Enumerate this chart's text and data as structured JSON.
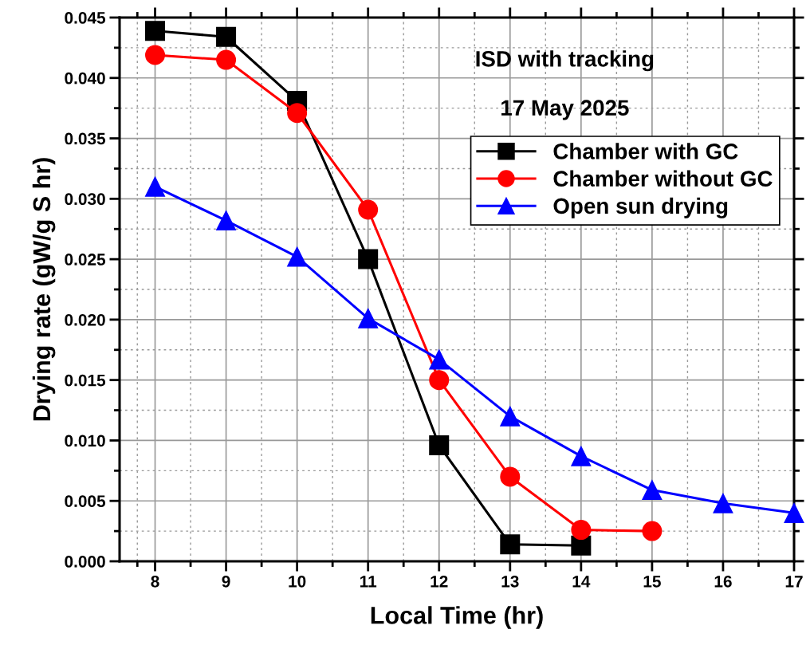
{
  "chart_data": {
    "type": "line",
    "xlabel": "Local Time (hr)",
    "ylabel": "Drying rate (gW/g S hr)",
    "annotations": [
      "ISD with tracking",
      "17 May 2025"
    ],
    "xlim": [
      7.5,
      17
    ],
    "xticks": [
      8,
      9,
      10,
      11,
      12,
      13,
      14,
      15,
      16,
      17
    ],
    "ylim": [
      0,
      0.045
    ],
    "yticks": [
      {
        "value": 0,
        "label": "0.000"
      },
      {
        "value": 0.005,
        "label": "0.005"
      },
      {
        "value": 0.01,
        "label": "0.010"
      },
      {
        "value": 0.015,
        "label": "0.015"
      },
      {
        "value": 0.02,
        "label": "0.020"
      },
      {
        "value": 0.025,
        "label": "0.025"
      },
      {
        "value": 0.03,
        "label": "0.030"
      },
      {
        "value": 0.035,
        "label": "0.035"
      },
      {
        "value": 0.04,
        "label": "0.040"
      },
      {
        "value": 0.045,
        "label": "0.045"
      }
    ],
    "grid": true,
    "legend": "right",
    "line_style": "solid",
    "series": [
      {
        "name": "Chamber with GC",
        "color": "#000000",
        "marker": "square",
        "x": [
          8,
          9,
          10,
          11,
          12,
          13,
          14
        ],
        "values": [
          0.0439,
          0.0434,
          0.0381,
          0.025,
          0.0096,
          0.0014,
          0.0013
        ]
      },
      {
        "name": "Chamber without GC",
        "color": "#ff0000",
        "marker": "circle",
        "x": [
          8,
          9,
          10,
          11,
          12,
          13,
          14,
          15
        ],
        "values": [
          0.0419,
          0.0415,
          0.0371,
          0.0291,
          0.015,
          0.007,
          0.0026,
          0.0025
        ]
      },
      {
        "name": "Open sun drying",
        "color": "#0000ff",
        "marker": "triangle",
        "x": [
          8,
          9,
          10,
          11,
          12,
          13,
          14,
          15,
          16,
          17
        ],
        "values": [
          0.031,
          0.0282,
          0.0252,
          0.0201,
          0.0167,
          0.012,
          0.0087,
          0.0059,
          0.0048,
          0.004
        ]
      }
    ]
  }
}
